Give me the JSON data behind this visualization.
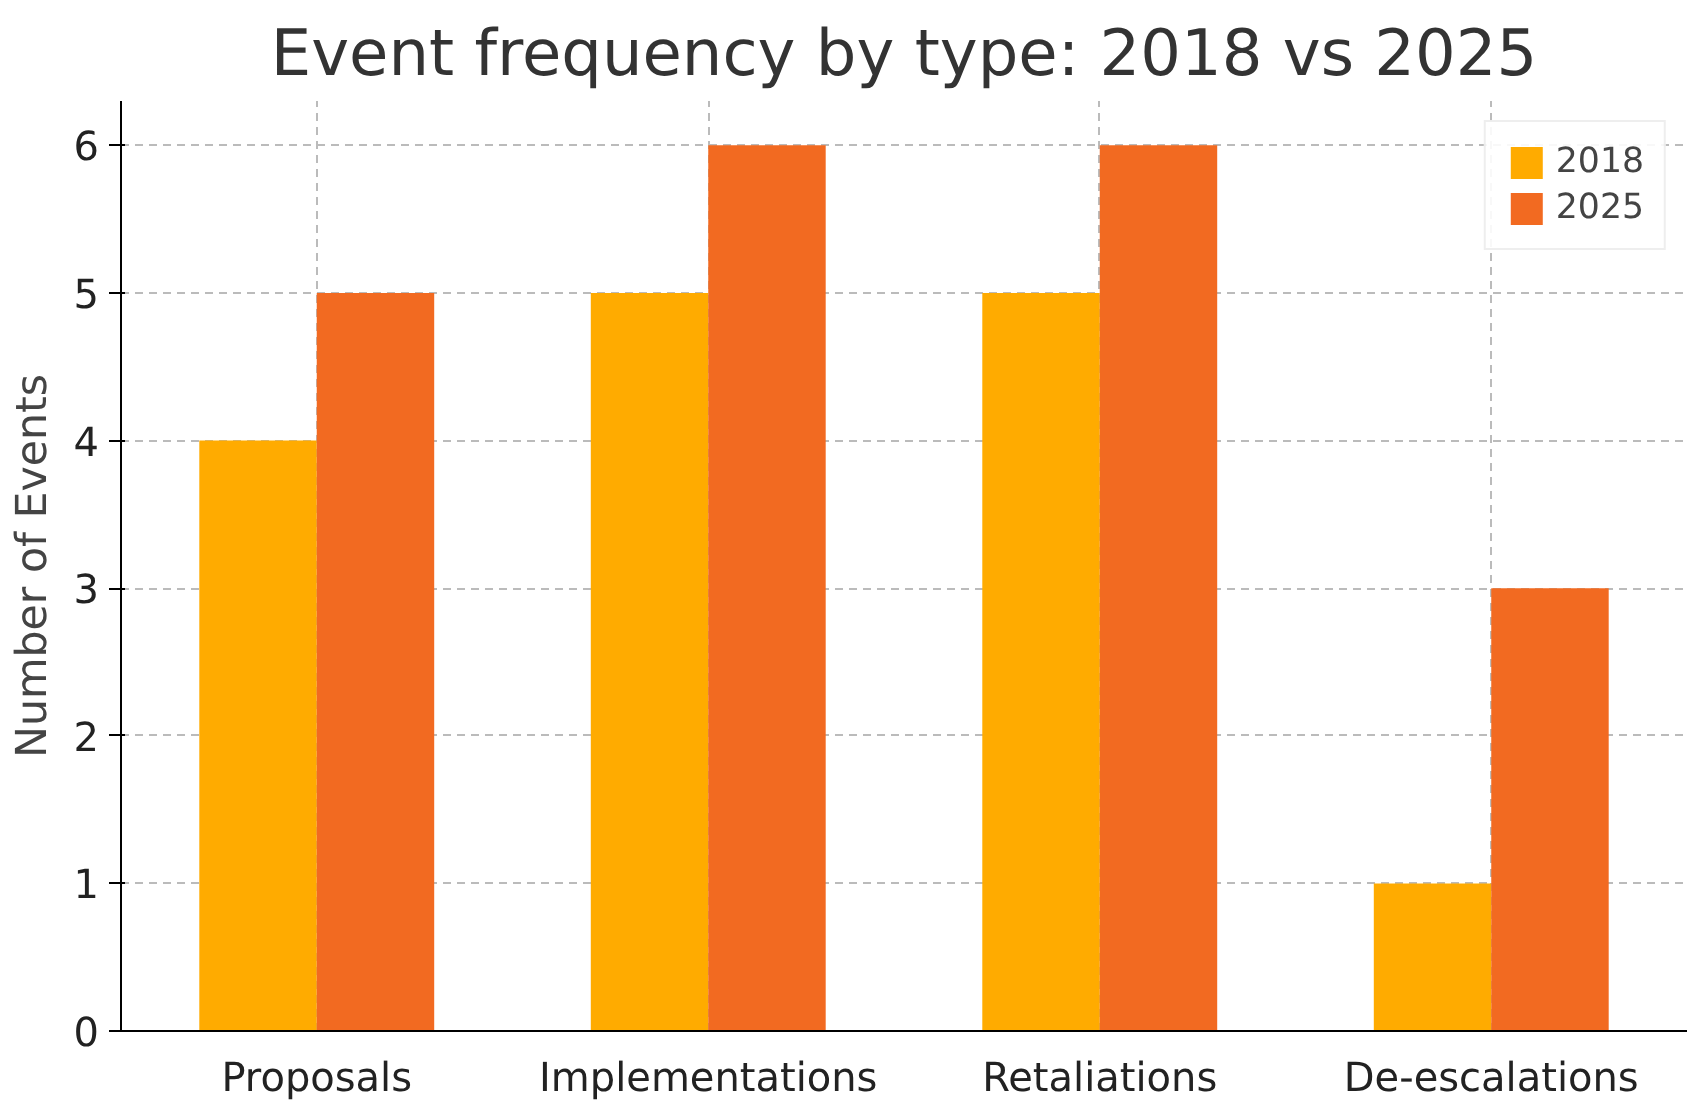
{
  "chart_data": {
    "type": "bar",
    "title": "Event frequency by type: 2018 vs 2025",
    "ylabel": "Number of Events",
    "categories": [
      "Proposals",
      "Implementations",
      "Retaliations",
      "De-escalations"
    ],
    "series": [
      {
        "name": "2018",
        "color": "#ffab00",
        "values": [
          4,
          5,
          5,
          1
        ]
      },
      {
        "name": "2025",
        "color": "#f26a21",
        "values": [
          5,
          6,
          6,
          3
        ]
      }
    ],
    "ylim": [
      0,
      6.3
    ],
    "yticks": [
      0,
      1,
      2,
      3,
      4,
      5,
      6
    ],
    "grid": true,
    "legend": "top right"
  }
}
